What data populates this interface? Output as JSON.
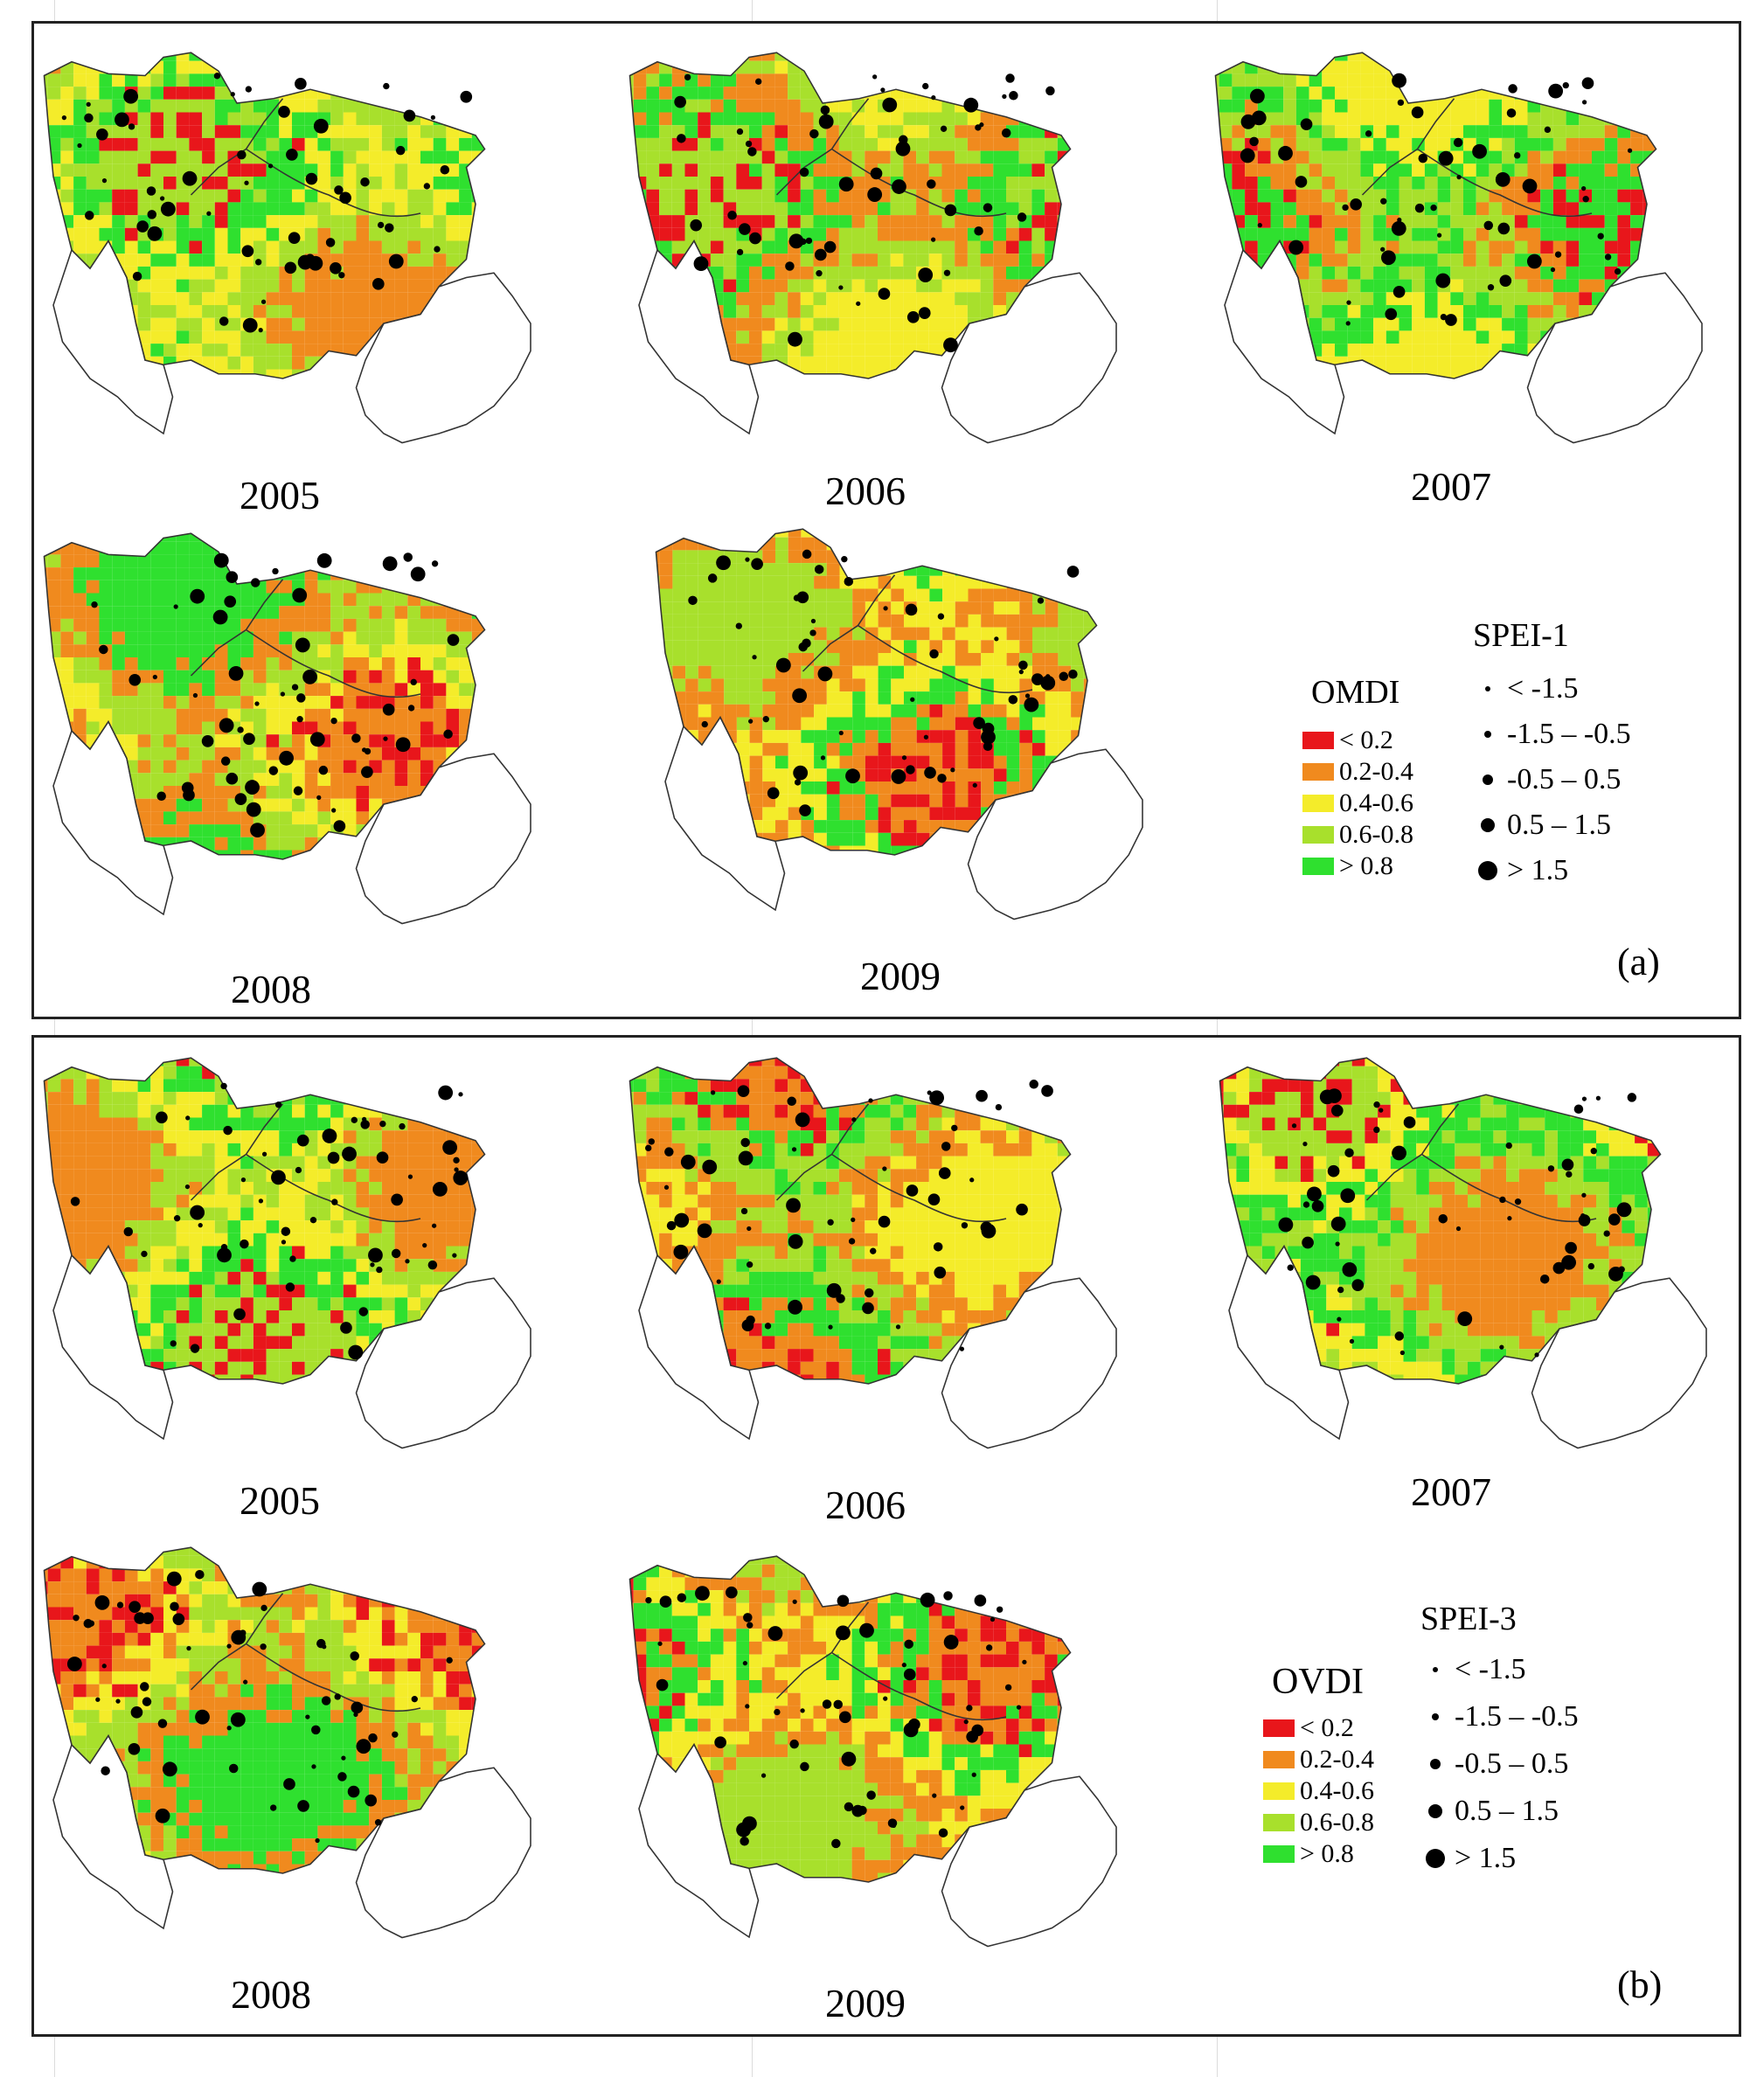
{
  "panels": [
    {
      "label": "(a)",
      "index_legend_title": "OMDI",
      "spei_legend_title": "SPEI-1",
      "years": [
        "2005",
        "2006",
        "2007",
        "2008",
        "2009"
      ]
    },
    {
      "label": "(b)",
      "index_legend_title": "OVDI",
      "spei_legend_title": "SPEI-3",
      "years": [
        "2005",
        "2006",
        "2007",
        "2008",
        "2009"
      ]
    }
  ],
  "index_classes": [
    {
      "label": "< 0.2",
      "color": "#e8161b"
    },
    {
      "label": "0.2-0.4",
      "color": "#f08a1e"
    },
    {
      "label": "0.4-0.6",
      "color": "#f4ec2a"
    },
    {
      "label": "0.6-0.8",
      "color": "#a8e02c"
    },
    {
      "label": "> 0.8",
      "color": "#2fe02f"
    }
  ],
  "spei_classes": [
    {
      "label": "< -1.5"
    },
    {
      "label": "-1.5 – -0.5"
    },
    {
      "label": "-0.5 – 0.5"
    },
    {
      "label": "0.5 – 1.5"
    },
    {
      "label": "> 1.5"
    }
  ],
  "map_palettes": {
    "2005a": [
      "#f4ec2a",
      "#a8e02c",
      "#f08a1e",
      "#2fe02f",
      "#e8161b"
    ],
    "2006a": [
      "#f08a1e",
      "#a8e02c",
      "#f4ec2a",
      "#2fe02f",
      "#e8161b"
    ],
    "2007a": [
      "#a8e02c",
      "#2fe02f",
      "#f4ec2a",
      "#f08a1e",
      "#e8161b"
    ],
    "2008a": [
      "#a8e02c",
      "#f08a1e",
      "#2fe02f",
      "#f4ec2a",
      "#e8161b"
    ],
    "2009a": [
      "#f4ec2a",
      "#f08a1e",
      "#a8e02c",
      "#2fe02f",
      "#e8161b"
    ],
    "2005b": [
      "#f4ec2a",
      "#a8e02c",
      "#f08a1e",
      "#2fe02f",
      "#e8161b"
    ],
    "2006b": [
      "#a8e02c",
      "#f08a1e",
      "#f4ec2a",
      "#2fe02f",
      "#e8161b"
    ],
    "2007b": [
      "#2fe02f",
      "#a8e02c",
      "#f08a1e",
      "#f4ec2a",
      "#e8161b"
    ],
    "2008b": [
      "#a8e02c",
      "#f08a1e",
      "#2fe02f",
      "#f4ec2a",
      "#e8161b"
    ],
    "2009b": [
      "#f4ec2a",
      "#f08a1e",
      "#a8e02c",
      "#2fe02f",
      "#e8161b"
    ]
  }
}
